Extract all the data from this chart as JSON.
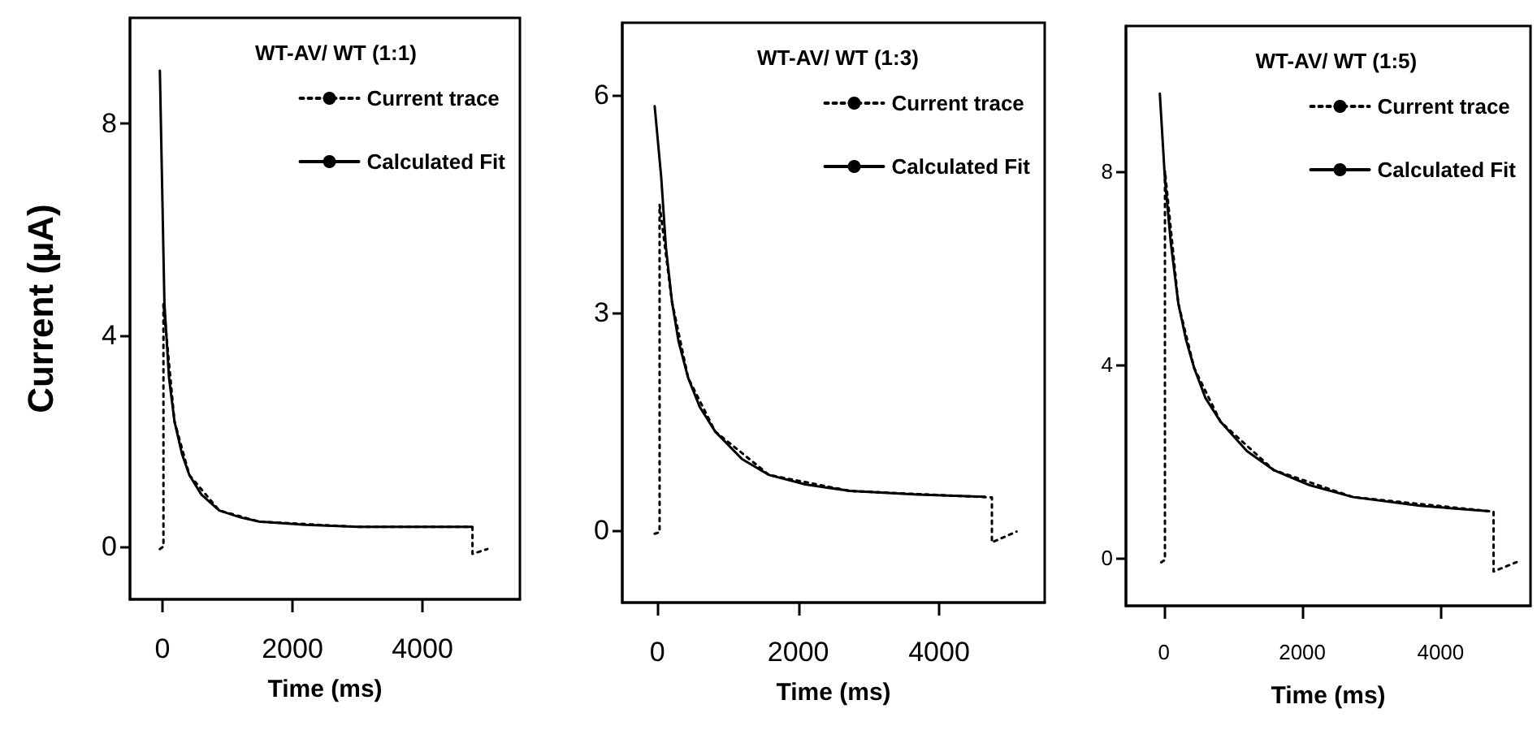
{
  "chart_data": [
    {
      "type": "line",
      "legend_title": "WT-AV/ WT (1:1)",
      "xlabel": "Time (ms)",
      "ylabel": "Current (µA)",
      "legend": "top right",
      "marker": "none",
      "grid": false,
      "xlim": [
        -500,
        5500
      ],
      "xticks": [
        0,
        2000,
        4000
      ],
      "ylim": [
        -1,
        10
      ],
      "yticks": [
        0,
        4,
        8
      ],
      "series": [
        {
          "name": "Current trace",
          "color": "#000000",
          "line_style": "dotted",
          "x": [
            -40,
            15,
            15,
            184,
            414,
            874,
            1487,
            3015,
            4770,
            4770,
            5000
          ],
          "values": [
            -0.05,
            0,
            4.6,
            2.37,
            1.35,
            0.68,
            0.47,
            0.37,
            0.37,
            -0.14,
            -0.05
          ]
        },
        {
          "name": "Calculated Fit",
          "color": "#000000",
          "line_style": "solid",
          "x": [
            -40,
            30,
            100,
            184,
            300,
            414,
            600,
            874,
            1200,
            1487,
            2200,
            3015,
            4000,
            4750
          ],
          "values": [
            9.0,
            4.6,
            3.2,
            2.37,
            1.75,
            1.35,
            0.98,
            0.68,
            0.55,
            0.47,
            0.41,
            0.37,
            0.37,
            0.37
          ]
        }
      ]
    },
    {
      "type": "line",
      "legend_title": "WT-AV/ WT (1:3)",
      "xlabel": "Time (ms)",
      "legend": "top right",
      "marker": "none",
      "grid": false,
      "xlim": [
        -500,
        5500
      ],
      "xticks": [
        0,
        2000,
        4000
      ],
      "ylim": [
        -1,
        7
      ],
      "yticks": [
        0,
        3,
        6
      ],
      "series": [
        {
          "name": "Current trace",
          "color": "#000000",
          "line_style": "dotted",
          "x": [
            -40,
            30,
            30,
            206,
            436,
            820,
            1586,
            2736,
            4750,
            4750,
            5100
          ],
          "values": [
            -0.05,
            -0.03,
            4.49,
            3.15,
            2.1,
            1.36,
            0.76,
            0.54,
            0.45,
            -0.17,
            -0.02
          ]
        },
        {
          "name": "Calculated Fit",
          "color": "#000000",
          "line_style": "solid",
          "x": [
            -40,
            53,
            120,
            206,
            300,
            436,
            600,
            820,
            1200,
            1586,
            2100,
            2736,
            3700,
            4650
          ],
          "values": [
            5.85,
            4.87,
            3.9,
            3.15,
            2.6,
            2.1,
            1.7,
            1.36,
            0.98,
            0.76,
            0.63,
            0.54,
            0.49,
            0.46
          ]
        }
      ]
    },
    {
      "type": "line",
      "legend_title": "WT-AV/ WT (1:5)",
      "xlabel": "Time (ms)",
      "legend": "top right",
      "marker": "none",
      "grid": false,
      "xlim": [
        -550,
        5300
      ],
      "xticks": [
        0,
        2000,
        4000
      ],
      "ylim": [
        -1,
        11
      ],
      "yticks": [
        0,
        4,
        8
      ],
      "series": [
        {
          "name": "Current trace",
          "color": "#000000",
          "line_style": "dotted",
          "x": [
            -40,
            14,
            14,
            207,
            437,
            818,
            1586,
            2736,
            4766,
            4766,
            5110
          ],
          "values": [
            -0.1,
            -0.05,
            8.0,
            5.26,
            3.92,
            2.81,
            1.81,
            1.25,
            0.95,
            -0.29,
            -0.09
          ]
        },
        {
          "name": "Calculated Fit",
          "color": "#000000",
          "line_style": "solid",
          "x": [
            -60,
            14,
            100,
            207,
            320,
            437,
            600,
            818,
            1200,
            1586,
            2100,
            2736,
            3700,
            4700
          ],
          "values": [
            9.6,
            7.83,
            6.5,
            5.26,
            4.5,
            3.92,
            3.3,
            2.81,
            2.2,
            1.81,
            1.5,
            1.25,
            1.07,
            0.96
          ]
        }
      ]
    }
  ]
}
